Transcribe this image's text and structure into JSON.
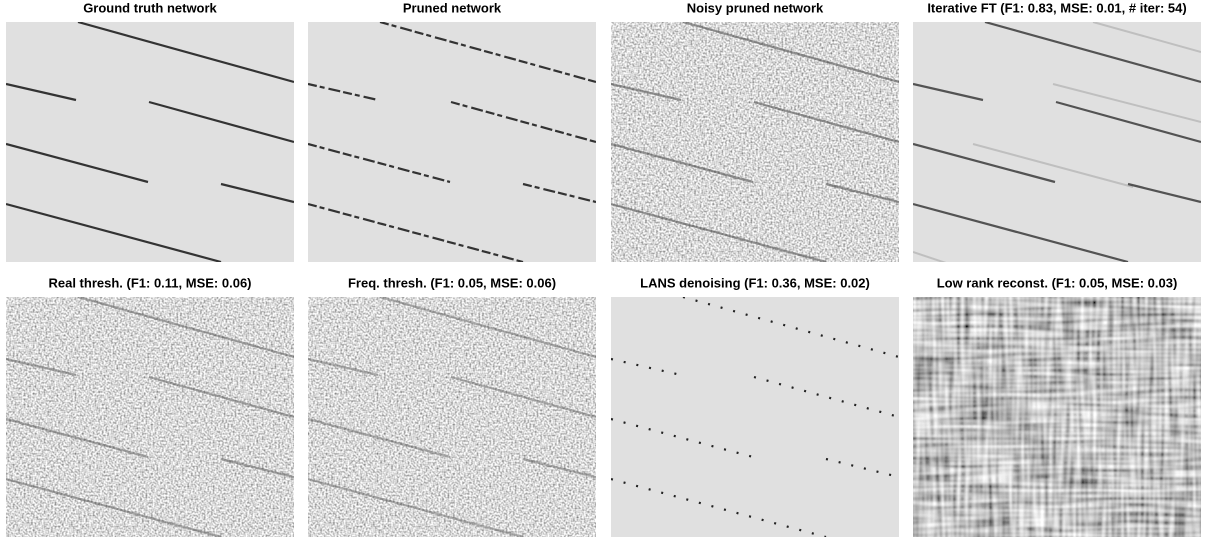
{
  "panels": [
    {
      "title": "Ground truth network"
    },
    {
      "title": "Pruned network"
    },
    {
      "title": "Noisy pruned network"
    },
    {
      "title": "Iterative FT (F1: 0.83, MSE: 0.01, # iter: 54)"
    },
    {
      "title": "Real thresh. (F1: 0.11, MSE: 0.06)"
    },
    {
      "title": "Freq. thresh. (F1: 0.05, MSE: 0.06)"
    },
    {
      "title": "LANS denoising (F1: 0.36, MSE: 0.02)"
    },
    {
      "title": "Low rank reconst. (F1: 0.05, MSE: 0.03)"
    }
  ]
}
